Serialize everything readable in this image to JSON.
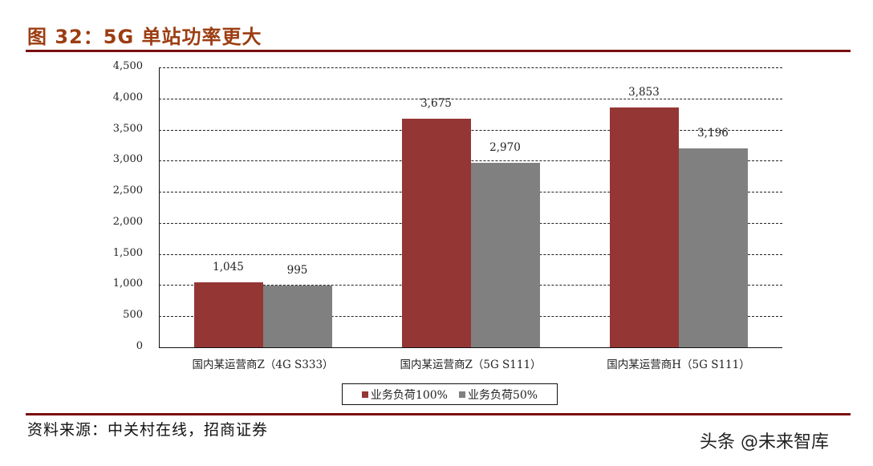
{
  "header": {
    "title": "图 32：5G 单站功率更大"
  },
  "footer": {
    "source": "资料来源：中关村在线，招商证券",
    "watermark": "头条 @未来智库"
  },
  "colors": {
    "title": "#9c3d12",
    "rule": "#7a0f0f",
    "series_100": "#943634",
    "series_50": "#808080"
  },
  "chart_data": {
    "type": "bar",
    "title": "5G 单站功率更大",
    "xlabel": "",
    "ylabel": "",
    "ylim": [
      0,
      4500
    ],
    "yticks": [
      "0",
      "500",
      "1,000",
      "1,500",
      "2,000",
      "2,500",
      "3,000",
      "3,500",
      "4,000",
      "4,500"
    ],
    "grid": true,
    "legend_position": "bottom",
    "categories": [
      "国内某运营商Z（4G S333）",
      "国内某运营商Z（5G S111）",
      "国内某运营商H（5G S111）"
    ],
    "series": [
      {
        "name": "业务负荷100%",
        "color": "#943634",
        "values": [
          1045,
          3675,
          3853
        ],
        "labels": [
          "1,045",
          "3,675",
          "3,853"
        ]
      },
      {
        "name": "业务负荷50%",
        "color": "#808080",
        "values": [
          995,
          2970,
          3196
        ],
        "labels": [
          "995",
          "2,970",
          "3,196"
        ]
      }
    ]
  }
}
